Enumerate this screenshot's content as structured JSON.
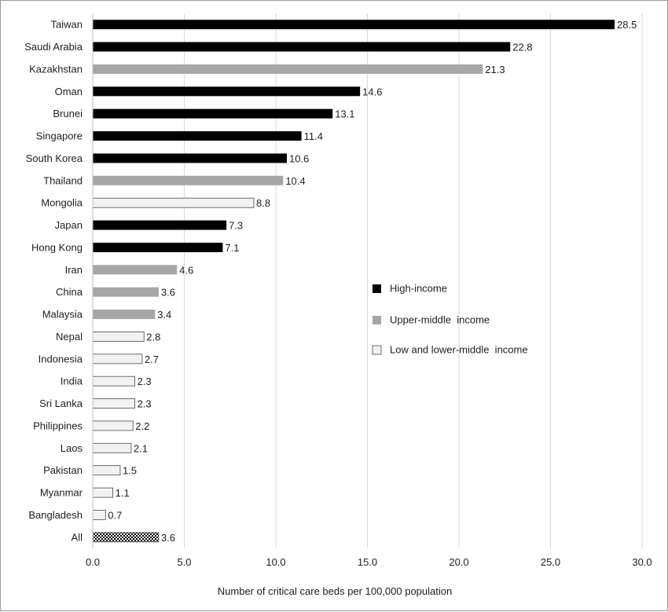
{
  "chart_data": {
    "type": "bar",
    "orientation": "horizontal",
    "categories": [
      "Taiwan",
      "Saudi Arabia",
      "Kazakhstan",
      "Oman",
      "Brunei",
      "Singapore",
      "South Korea",
      "Thailand",
      "Mongolia",
      "Japan",
      "Hong Kong",
      "Iran",
      "China",
      "Malaysia",
      "Nepal",
      "Indonesia",
      "India",
      "Sri Lanka",
      "Philippines",
      "Laos",
      "Pakistan",
      "Myanmar",
      "Bangladesh",
      "All"
    ],
    "values": [
      28.5,
      22.8,
      21.3,
      14.6,
      13.1,
      11.4,
      10.6,
      10.4,
      8.8,
      7.3,
      7.1,
      4.6,
      3.6,
      3.4,
      2.8,
      2.7,
      2.3,
      2.3,
      2.2,
      2.1,
      1.5,
      1.1,
      0.7,
      3.6
    ],
    "value_labels": [
      "28.5",
      "22.8",
      "21.3",
      "14.6",
      "13.1",
      "11.4",
      "10.6",
      "10.4",
      "8.8",
      "7.3",
      "7.1",
      "4.6",
      "3.6",
      "3.4",
      "2.8",
      "2.7",
      "2.3",
      "2.3",
      "2.2",
      "2.1",
      "1.5",
      "1.1",
      "0.7",
      "3.6"
    ],
    "groups": [
      "high",
      "high",
      "upper",
      "high",
      "high",
      "high",
      "high",
      "upper",
      "low",
      "high",
      "high",
      "upper",
      "upper",
      "upper",
      "low",
      "low",
      "low",
      "low",
      "low",
      "low",
      "low",
      "low",
      "low",
      "all"
    ],
    "legend": [
      {
        "key": "high",
        "label": "High-income"
      },
      {
        "key": "upper",
        "label": "Upper-middle  income"
      },
      {
        "key": "low",
        "label": "Low and lower-middle  income"
      }
    ],
    "group_colors": {
      "high": "#000000",
      "upper": "#a6a6a6",
      "low": "#f2f2f2",
      "all": "#6e6e6e"
    },
    "xlabel": "Number of critical care beds per 100,000 population",
    "ylabel": "",
    "title": "",
    "xlim": [
      0,
      30
    ],
    "xticks": [
      0,
      5,
      10,
      15,
      20,
      25,
      30
    ],
    "xtick_labels": [
      "0.0",
      "5.0",
      "10.0",
      "15.0",
      "20.0",
      "25.0",
      "30.0"
    ],
    "grid": "vertical",
    "legend_position": "right-center"
  }
}
